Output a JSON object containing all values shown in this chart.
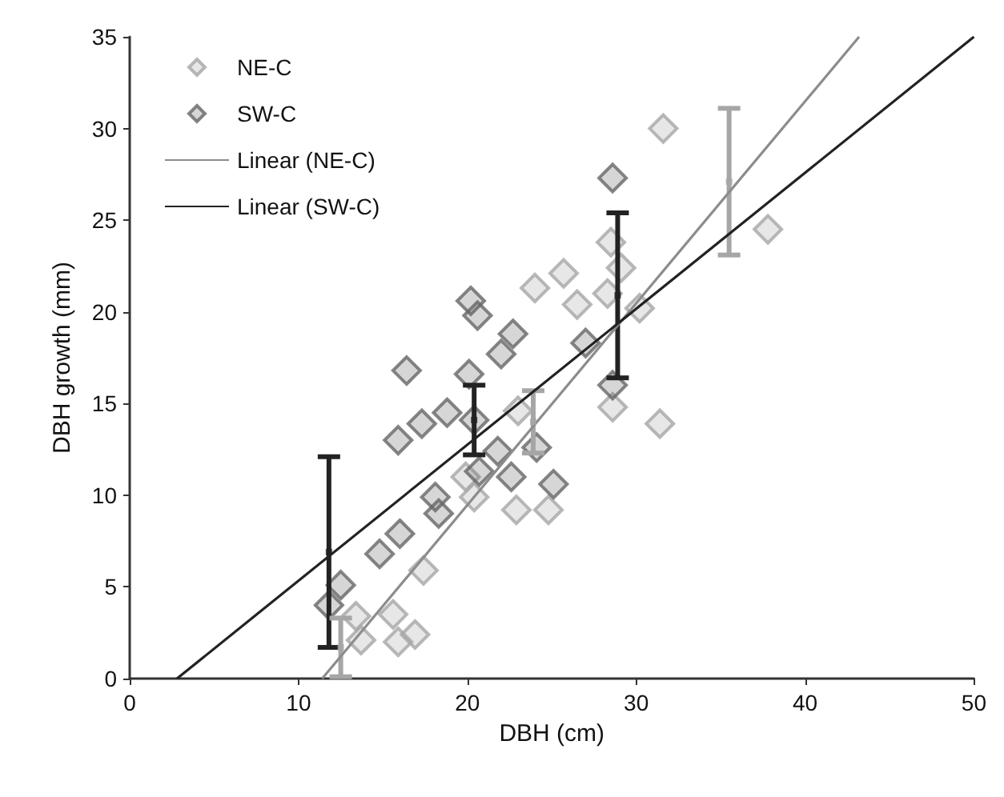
{
  "chart_data": {
    "type": "scatter",
    "xlabel": "DBH (cm)",
    "ylabel": "DBH growth (mm)",
    "xlim": [
      0,
      50
    ],
    "ylim": [
      0,
      35
    ],
    "xticks": [
      0,
      10,
      20,
      30,
      40,
      50
    ],
    "yticks": [
      0,
      5,
      10,
      15,
      20,
      25,
      30,
      35
    ],
    "grid": false,
    "legend": "top left",
    "marker": "diamond",
    "series": [
      {
        "name": "NE-C",
        "color": "#a6a6a6",
        "x": [
          13.4,
          13.7,
          15.6,
          15.9,
          16.9,
          17.4,
          19.9,
          20.4,
          22.9,
          24.8,
          24.0,
          25.7,
          26.5,
          29.1,
          28.3,
          30.2,
          31.4,
          28.6,
          28.5,
          31.6,
          37.8,
          23.0
        ],
        "values": [
          3.4,
          2.1,
          3.5,
          2.0,
          2.4,
          5.9,
          11.0,
          9.9,
          9.2,
          9.2,
          21.3,
          22.1,
          20.4,
          22.4,
          21.0,
          20.2,
          13.9,
          14.8,
          23.8,
          30.0,
          24.5,
          14.6
        ]
      },
      {
        "name": "SW-C",
        "color": "#666666",
        "x": [
          11.8,
          12.5,
          14.8,
          16.0,
          18.1,
          18.3,
          20.7,
          22.6,
          25.1,
          21.8,
          24.1,
          20.2,
          20.6,
          16.4,
          22.7,
          22.0,
          20.1,
          15.9,
          17.3,
          18.8,
          20.4,
          28.6,
          28.6,
          27.0
        ],
        "values": [
          4.0,
          5.1,
          6.8,
          7.9,
          9.9,
          9.0,
          11.3,
          11.0,
          10.6,
          12.4,
          12.6,
          20.6,
          19.8,
          16.8,
          18.8,
          17.7,
          16.6,
          13.0,
          13.9,
          14.5,
          14.1,
          16.0,
          27.3,
          18.3
        ]
      },
      {
        "name": "Linear (NE-C)",
        "type": "line",
        "marker": "none",
        "color": "#8c8c8c",
        "x": [
          11.4,
          43.2
        ],
        "values": [
          0,
          35
        ]
      },
      {
        "name": "Linear (SW-C)",
        "type": "line",
        "marker": "none",
        "color": "#222222",
        "x": [
          2.8,
          50
        ],
        "values": [
          0,
          35
        ]
      },
      {
        "color": "#222222",
        "marker": "square",
        "x": [
          11.8,
          20.4,
          28.9
        ],
        "values": [
          6.9,
          14.1,
          20.9
        ],
        "errors": [
          5.2,
          1.9,
          4.5
        ]
      },
      {
        "color": "#a6a6a6",
        "marker": "square",
        "x": [
          12.5,
          23.9,
          35.5
        ],
        "values": [
          1.7,
          14.0,
          27.1
        ],
        "errors": [
          1.6,
          1.7,
          4.0
        ]
      }
    ]
  }
}
